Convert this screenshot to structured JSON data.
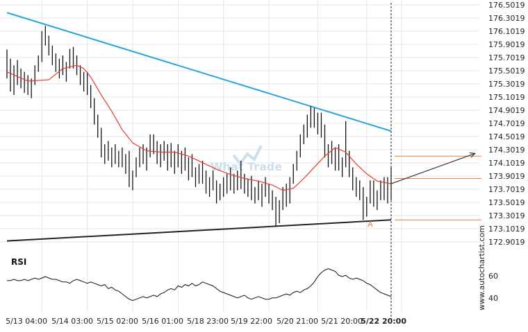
{
  "watermark": "What Trade",
  "side_label": "www.autochartist.com",
  "pattern_point_label": "A",
  "colors": {
    "bar": "#111111",
    "moving_average": "#e8382f",
    "upper_trendline": "#29a3dc",
    "lower_trendline": "#222222",
    "level_lines": "#e8823a",
    "projection_arrow": "#333333",
    "rsi_line": "#111111",
    "grid": "#e6e6e6",
    "watermark": "#c6dde8"
  },
  "chart_data": [
    {
      "type": "ohlc",
      "y_tick_labels": [
        "176.5019",
        "176.3019",
        "176.1019",
        "175.9019",
        "175.7019",
        "175.5019",
        "175.3019",
        "175.1019",
        "174.9019",
        "174.7019",
        "174.5019",
        "174.3019",
        "174.1019",
        "173.9019",
        "173.7019",
        "173.5019",
        "173.3019",
        "173.1019",
        "172.9019"
      ],
      "x_tick_labels": [
        "5/13 04:00",
        "5/14 03:00",
        "5/15 02:00",
        "5/16 01:00",
        "5/18 23:00",
        "5/19 22:00",
        "5/20 21:00",
        "5/21 20:00",
        "5/22 20:00"
      ],
      "ylim": [
        172.8,
        176.55
      ],
      "x_range": [
        0,
        110
      ],
      "x_ticks": [
        10,
        23,
        36,
        49,
        62,
        75,
        89,
        103,
        113
      ],
      "grid": true,
      "bars": [
        [
          0,
          175.82,
          175.84,
          175.4,
          175.55
        ],
        [
          1,
          175.55,
          175.7,
          175.2,
          175.35
        ],
        [
          2,
          175.35,
          175.6,
          175.15,
          175.5
        ],
        [
          3,
          175.5,
          175.68,
          175.3,
          175.42
        ],
        [
          4,
          175.42,
          175.55,
          175.25,
          175.35
        ],
        [
          5,
          175.35,
          175.5,
          175.18,
          175.3
        ],
        [
          6,
          175.3,
          175.45,
          175.15,
          175.22
        ],
        [
          7,
          175.22,
          175.4,
          175.1,
          175.32
        ],
        [
          8,
          175.32,
          175.6,
          175.3,
          175.58
        ],
        [
          9,
          175.58,
          175.75,
          175.5,
          175.7
        ],
        [
          10,
          175.7,
          176.12,
          175.65,
          176.08
        ],
        [
          11,
          176.08,
          176.2,
          175.9,
          175.95
        ],
        [
          12,
          175.95,
          176.05,
          175.75,
          175.8
        ],
        [
          13,
          175.8,
          175.9,
          175.6,
          175.65
        ],
        [
          14,
          175.65,
          175.78,
          175.5,
          175.55
        ],
        [
          15,
          175.55,
          175.7,
          175.4,
          175.62
        ],
        [
          16,
          175.62,
          175.75,
          175.45,
          175.5
        ],
        [
          17,
          175.5,
          175.65,
          175.35,
          175.58
        ],
        [
          18,
          175.58,
          175.85,
          175.55,
          175.8
        ],
        [
          19,
          175.8,
          175.88,
          175.55,
          175.6
        ],
        [
          20,
          175.6,
          175.75,
          175.45,
          175.5
        ],
        [
          21,
          175.5,
          175.6,
          175.3,
          175.35
        ],
        [
          22,
          175.35,
          175.5,
          175.2,
          175.42
        ],
        [
          23,
          175.42,
          175.5,
          175.15,
          175.2
        ],
        [
          24,
          175.2,
          175.3,
          174.95,
          175.0
        ],
        [
          25,
          175.0,
          175.1,
          174.7,
          174.75
        ],
        [
          26,
          174.75,
          174.85,
          174.5,
          174.55
        ],
        [
          27,
          174.55,
          174.65,
          174.2,
          174.25
        ],
        [
          28,
          174.25,
          174.4,
          174.1,
          174.35
        ],
        [
          29,
          174.35,
          174.45,
          174.15,
          174.2
        ],
        [
          30,
          174.2,
          174.35,
          174.05,
          174.3
        ],
        [
          31,
          174.3,
          174.4,
          174.1,
          174.15
        ],
        [
          32,
          174.15,
          174.3,
          174.05,
          174.25
        ],
        [
          33,
          174.25,
          174.35,
          174.05,
          174.1
        ],
        [
          34,
          174.1,
          174.25,
          173.95,
          174.2
        ],
        [
          35,
          174.2,
          174.3,
          173.75,
          173.8
        ],
        [
          36,
          173.8,
          174.0,
          173.7,
          173.95
        ],
        [
          37,
          173.95,
          174.2,
          173.9,
          174.15
        ],
        [
          38,
          174.15,
          174.35,
          174.05,
          174.3
        ],
        [
          39,
          174.3,
          174.4,
          174.1,
          174.15
        ],
        [
          40,
          174.15,
          174.35,
          174.0,
          174.3
        ],
        [
          41,
          174.3,
          174.55,
          174.2,
          174.45
        ],
        [
          42,
          174.45,
          174.55,
          174.25,
          174.3
        ],
        [
          43,
          174.3,
          174.45,
          174.1,
          174.2
        ],
        [
          44,
          174.2,
          174.4,
          174.05,
          174.35
        ],
        [
          45,
          174.35,
          174.45,
          174.15,
          174.22
        ],
        [
          46,
          174.22,
          174.4,
          174.0,
          174.3
        ],
        [
          47,
          174.3,
          174.42,
          174.05,
          174.12
        ],
        [
          48,
          174.12,
          174.3,
          173.95,
          174.25
        ],
        [
          49,
          174.25,
          174.4,
          174.05,
          174.1
        ],
        [
          50,
          174.1,
          174.3,
          173.95,
          174.2
        ],
        [
          51,
          174.2,
          174.35,
          174.0,
          174.05
        ],
        [
          52,
          174.05,
          174.2,
          173.85,
          174.1
        ],
        [
          53,
          174.1,
          174.25,
          173.9,
          173.95
        ],
        [
          54,
          173.95,
          174.05,
          173.75,
          173.85
        ],
        [
          55,
          173.85,
          174.1,
          173.8,
          174.0
        ],
        [
          56,
          174.0,
          174.15,
          173.8,
          173.9
        ],
        [
          57,
          173.9,
          174.0,
          173.65,
          173.72
        ],
        [
          58,
          173.72,
          173.9,
          173.6,
          173.85
        ],
        [
          59,
          173.85,
          174.0,
          173.7,
          173.75
        ],
        [
          60,
          173.75,
          173.85,
          173.5,
          173.62
        ],
        [
          61,
          173.62,
          173.8,
          173.55,
          173.75
        ],
        [
          62,
          173.75,
          173.9,
          173.6,
          173.7
        ],
        [
          63,
          173.7,
          173.95,
          173.65,
          173.88
        ],
        [
          64,
          173.88,
          174.05,
          173.7,
          173.8
        ],
        [
          65,
          173.8,
          173.95,
          173.65,
          173.85
        ],
        [
          66,
          173.85,
          174.0,
          173.7,
          173.78
        ],
        [
          67,
          173.78,
          174.15,
          173.72,
          173.85
        ],
        [
          68,
          173.85,
          173.95,
          173.65,
          173.72
        ],
        [
          69,
          173.72,
          173.88,
          173.6,
          173.8
        ],
        [
          70,
          173.8,
          173.92,
          173.55,
          173.6
        ],
        [
          71,
          173.6,
          173.75,
          173.5,
          173.7
        ],
        [
          72,
          173.7,
          173.85,
          173.55,
          173.62
        ],
        [
          73,
          173.62,
          173.8,
          173.45,
          173.75
        ],
        [
          74,
          173.75,
          173.9,
          173.6,
          173.68
        ],
        [
          75,
          173.68,
          173.8,
          173.5,
          173.55
        ],
        [
          76,
          173.55,
          173.7,
          173.4,
          173.45
        ],
        [
          77,
          173.45,
          173.6,
          173.15,
          173.3
        ],
        [
          78,
          173.3,
          173.55,
          173.2,
          173.48
        ],
        [
          79,
          173.48,
          173.75,
          173.4,
          173.65
        ],
        [
          80,
          173.65,
          173.8,
          173.45,
          173.55
        ],
        [
          81,
          173.55,
          173.9,
          173.5,
          173.85
        ],
        [
          82,
          173.85,
          174.1,
          173.8,
          174.05
        ],
        [
          83,
          174.05,
          174.3,
          174.0,
          174.25
        ],
        [
          84,
          174.25,
          174.55,
          174.2,
          174.5
        ],
        [
          85,
          174.5,
          174.7,
          174.4,
          174.6
        ],
        [
          86,
          174.6,
          174.85,
          174.5,
          174.75
        ],
        [
          87,
          174.75,
          174.98,
          174.65,
          174.9
        ],
        [
          88,
          174.9,
          174.95,
          174.65,
          174.72
        ],
        [
          89,
          174.72,
          174.88,
          174.55,
          174.8
        ],
        [
          90,
          174.8,
          174.88,
          174.5,
          174.6
        ],
        [
          91,
          174.6,
          174.7,
          174.2,
          174.25
        ],
        [
          92,
          174.25,
          174.4,
          174.05,
          174.3
        ],
        [
          93,
          174.3,
          174.45,
          174.1,
          174.15
        ],
        [
          94,
          174.15,
          174.35,
          174.0,
          174.25
        ],
        [
          95,
          174.25,
          174.4,
          174.0,
          174.05
        ],
        [
          96,
          174.05,
          174.2,
          173.9,
          174.1
        ],
        [
          97,
          174.1,
          174.75,
          174.05,
          174.2
        ],
        [
          98,
          174.2,
          174.3,
          173.9,
          173.95
        ],
        [
          99,
          173.95,
          174.05,
          173.7,
          173.78
        ],
        [
          100,
          173.78,
          173.9,
          173.6,
          173.7
        ],
        [
          101,
          173.7,
          173.85,
          173.55,
          173.65
        ],
        [
          102,
          173.65,
          173.75,
          173.25,
          173.35
        ],
        [
          103,
          173.35,
          173.6,
          173.3,
          173.55
        ],
        [
          104,
          173.55,
          173.85,
          173.5,
          173.8
        ],
        [
          105,
          173.8,
          173.85,
          173.45,
          173.5
        ],
        [
          106,
          173.5,
          173.7,
          173.4,
          173.6
        ],
        [
          107,
          173.6,
          173.85,
          173.55,
          173.78
        ],
        [
          108,
          173.78,
          173.9,
          173.55,
          173.85
        ],
        [
          109,
          173.85,
          173.9,
          173.5,
          173.6
        ],
        [
          110,
          173.6,
          174.05,
          173.55,
          173.8
        ]
      ],
      "moving_average": [
        [
          0,
          175.5
        ],
        [
          6,
          175.36
        ],
        [
          12,
          175.38
        ],
        [
          16,
          175.55
        ],
        [
          20,
          175.6
        ],
        [
          22,
          175.55
        ],
        [
          24,
          175.42
        ],
        [
          27,
          175.15
        ],
        [
          30,
          174.9
        ],
        [
          33,
          174.62
        ],
        [
          36,
          174.42
        ],
        [
          40,
          174.3
        ],
        [
          44,
          174.28
        ],
        [
          48,
          174.28
        ],
        [
          52,
          174.22
        ],
        [
          56,
          174.12
        ],
        [
          60,
          174.02
        ],
        [
          64,
          173.94
        ],
        [
          68,
          173.88
        ],
        [
          72,
          173.84
        ],
        [
          76,
          173.78
        ],
        [
          79,
          173.7
        ],
        [
          82,
          173.73
        ],
        [
          85,
          173.88
        ],
        [
          88,
          174.05
        ],
        [
          91,
          174.22
        ],
        [
          94,
          174.35
        ],
        [
          97,
          174.28
        ],
        [
          100,
          174.1
        ],
        [
          103,
          173.95
        ],
        [
          106,
          173.84
        ],
        [
          110,
          173.8
        ]
      ],
      "upper_trendline": [
        [
          0,
          176.4
        ],
        [
          110,
          174.6
        ]
      ],
      "lower_trendline": [
        [
          0,
          172.93
        ],
        [
          110,
          173.25
        ]
      ],
      "levels": [
        [
          111,
          174.22
        ],
        [
          111,
          173.88
        ],
        [
          111,
          173.25
        ]
      ],
      "projection_arrow": [
        [
          110,
          173.8
        ],
        [
          134,
          174.26
        ]
      ],
      "pattern_point": [
        104,
        173.15
      ],
      "event_marker_x": 110
    },
    {
      "type": "line",
      "title": "RSI",
      "y_tick_labels": [
        "60",
        "40"
      ],
      "ylim": [
        32,
        67
      ],
      "values": [
        54,
        54,
        55,
        54,
        54,
        55,
        54,
        55,
        56,
        55,
        56,
        57,
        56,
        55,
        55,
        54,
        53,
        53,
        52,
        54,
        55,
        54,
        53,
        52,
        53,
        52,
        51,
        50,
        51,
        48,
        49,
        47,
        46,
        44,
        42,
        40,
        39,
        40,
        41,
        42,
        41,
        42,
        43,
        42,
        44,
        45,
        47,
        48,
        47,
        50,
        49,
        51,
        50,
        52,
        50,
        51,
        53,
        52,
        51,
        50,
        48,
        46,
        45,
        44,
        43,
        42,
        41,
        42,
        43,
        41,
        40,
        41,
        42,
        41,
        40,
        40,
        41,
        41,
        42,
        43,
        44,
        43,
        45,
        46,
        45,
        47,
        48,
        50,
        53,
        57,
        60,
        62,
        63,
        62,
        61,
        58,
        57,
        58,
        56,
        55,
        56,
        55,
        54,
        52,
        51,
        49,
        47,
        45,
        44,
        43,
        42
      ]
    }
  ]
}
